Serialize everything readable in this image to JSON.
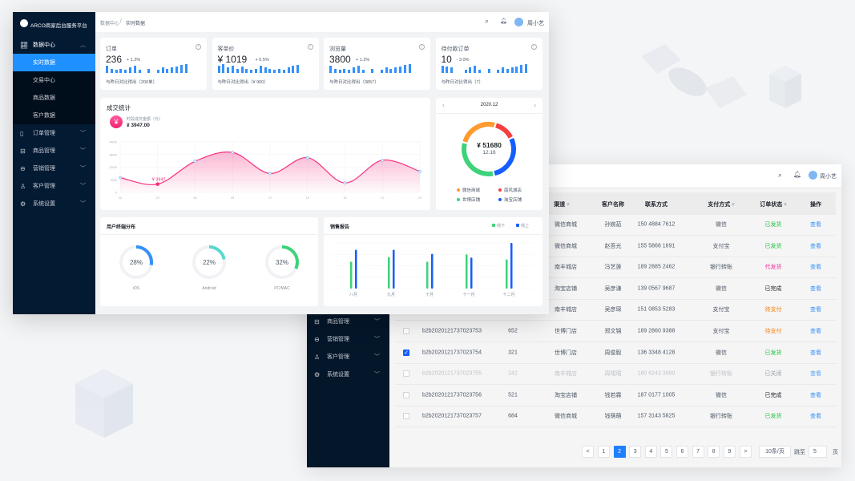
{
  "colors": {
    "accent": "#1e90ff",
    "sidebar": "#031a33",
    "pink": "#f5317f",
    "green": "#23c343",
    "orange": "#ff7d00",
    "blue": "#165dff"
  },
  "front": {
    "logo_text": "ARCO商家后台服务平台",
    "breadcrumb": [
      "数据中心",
      "/",
      "实时数据"
    ],
    "user": "周小艺",
    "sidebar": {
      "group": "数据中心",
      "sub_items": [
        "实时数据",
        "交易中心",
        "商品数据",
        "客户数据"
      ],
      "active": "实时数据",
      "items": [
        {
          "label": "订单管理",
          "icon": "document-icon"
        },
        {
          "label": "商品管理",
          "icon": "box-icon"
        },
        {
          "label": "营销管理",
          "icon": "marketing-icon"
        },
        {
          "label": "客户管理",
          "icon": "user-icon"
        },
        {
          "label": "系统设置",
          "icon": "settings-icon"
        }
      ]
    },
    "stats": [
      {
        "title": "订单",
        "value": "236",
        "change": "+ 1.2%",
        "footer": "与昨日对比得出（200单）",
        "bars": [
          8,
          5,
          4,
          5,
          4,
          6,
          8,
          4,
          0,
          5,
          0,
          4,
          6,
          5,
          6,
          7,
          9,
          10
        ]
      },
      {
        "title": "客单价",
        "value": "¥ 1019",
        "change": "+ 0.5%",
        "footer": "与昨日对比得出（¥ 900）",
        "bars": [
          8,
          10,
          6,
          8,
          5,
          7,
          5,
          4,
          5,
          8,
          6,
          5,
          4,
          5,
          4,
          6,
          8,
          9
        ]
      },
      {
        "title": "浏览量",
        "value": "3800",
        "change": "+ 1.2%",
        "footer": "与昨日对比得出（3857）",
        "bars": [
          8,
          5,
          4,
          5,
          4,
          6,
          8,
          4,
          0,
          5,
          0,
          4,
          6,
          5,
          6,
          7,
          9,
          10
        ]
      },
      {
        "title": "待付款订单",
        "value": "10",
        "change": "- 3.0%",
        "footer": "与昨日对比得出（7）",
        "bars": [
          8,
          7,
          6,
          0,
          0,
          4,
          6,
          8,
          4,
          0,
          5,
          0,
          4,
          6,
          5,
          6,
          7,
          9,
          10
        ]
      }
    ],
    "deal": {
      "title": "成交统计",
      "metric_label": "时段成交金额（元）",
      "metric_value": "¥ 3947.00",
      "highlight_label": "¥ 3947"
    },
    "donut": {
      "month": "2020.12",
      "total": "¥ 51680",
      "date": "12.16"
    },
    "terminal": {
      "title": "用户终端分布",
      "items": [
        {
          "label": "iOS",
          "percent": 28,
          "text": "28%",
          "color": "#3491fa"
        },
        {
          "label": "Android",
          "percent": 22,
          "text": "22%",
          "color": "#5ad8d0"
        },
        {
          "label": "PC/MAC",
          "percent": 32,
          "text": "32%",
          "color": "#3dd37a"
        }
      ]
    },
    "sales": {
      "title": "销售报告"
    }
  },
  "chart_data": [
    {
      "type": "area",
      "title": "成交统计",
      "x": [
        "00",
        "03",
        "06",
        "09",
        "12",
        "15",
        "18",
        "21",
        "24"
      ],
      "values": [
        7000,
        3947,
        14800,
        19000,
        9000,
        16500,
        4500,
        15300,
        10000
      ],
      "yticks": [
        "0",
        "6000",
        "12000",
        "18000",
        "24000"
      ],
      "ylim": [
        0,
        24000
      ],
      "grid": true,
      "color": "#f5317f"
    },
    {
      "type": "pie",
      "categories": [
        "微信商城",
        "南风城店",
        "淘宝店铺",
        "世博店铺"
      ],
      "values": [
        24,
        13,
        28,
        31
      ],
      "colors": [
        "#ff9a2e",
        "#f53f3f",
        "#165dff",
        "#3dd37a"
      ]
    },
    {
      "type": "bar",
      "categories": [
        "八月",
        "九月",
        "十月",
        "十一月",
        "十二月"
      ],
      "series": [
        {
          "name": "线下",
          "values": [
            59,
            69,
            59,
            75,
            64
          ],
          "color": "#3dd37a"
        },
        {
          "name": "线上",
          "values": [
            85,
            85,
            76,
            68,
            100
          ],
          "color": "#165dff"
        }
      ],
      "ylim": [
        0,
        100
      ],
      "grid": true,
      "legend": "top-right"
    }
  ],
  "back": {
    "user": "周小艺",
    "sidebar": [
      {
        "label": "商品管理",
        "icon": "box-icon"
      },
      {
        "label": "营销管理",
        "icon": "marketing-icon"
      },
      {
        "label": "客户管理",
        "icon": "user-icon"
      },
      {
        "label": "系统设置",
        "icon": "settings-icon"
      }
    ],
    "columns": [
      "渠道",
      "客户名称",
      "联系方式",
      "支付方式",
      "订单状态",
      "操作"
    ],
    "rows": [
      {
        "id": "",
        "count": "",
        "channel": "微信商城",
        "name": "孙婉茹",
        "phone": "150 4884 7612",
        "pay": "微信",
        "status": "已发货",
        "tone": "green",
        "action": "查看"
      },
      {
        "id": "",
        "count": "",
        "channel": "微信商城",
        "name": "赵吾光",
        "phone": "155 5866 1691",
        "pay": "支付宝",
        "status": "已发货",
        "tone": "green",
        "action": "查看"
      },
      {
        "id": "",
        "count": "",
        "channel": "南丰城店",
        "name": "冯艺莲",
        "phone": "189 2885 2462",
        "pay": "银行转账",
        "status": "代发货",
        "tone": "pink",
        "action": "查看"
      },
      {
        "id": "",
        "count": "",
        "channel": "淘宝店铺",
        "name": "吴彦谦",
        "phone": "139 0567 9687",
        "pay": "微信",
        "status": "已完成",
        "tone": "dark",
        "action": "查看"
      },
      {
        "id": "",
        "count": "",
        "channel": "南丰城店",
        "name": "吴彦琛",
        "phone": "151 0853 5283",
        "pay": "支付宝",
        "status": "待支付",
        "tone": "orange",
        "action": "查看"
      },
      {
        "id": "b2b2020121737023753",
        "count": "652",
        "channel": "世博门店",
        "name": "郑文锦",
        "phone": "189 2860 9388",
        "pay": "支付宝",
        "status": "待支付",
        "tone": "orange",
        "action": "查看",
        "checked": false
      },
      {
        "id": "b2b2020121737023754",
        "count": "321",
        "channel": "世博门店",
        "name": "周俊毅",
        "phone": "136 3348 4128",
        "pay": "微信",
        "status": "已发货",
        "tone": "green",
        "action": "查看",
        "checked": true
      },
      {
        "id": "b2b2020121737023755",
        "count": "242",
        "channel": "南丰城店",
        "name": "周珺珺",
        "phone": "180 6243 3980",
        "pay": "银行转账",
        "status": "已关闭",
        "tone": "gray",
        "action": "查看",
        "checked": false,
        "disabled": true
      },
      {
        "id": "b2b2020121737023756",
        "count": "521",
        "channel": "淘宝店铺",
        "name": "钱若霖",
        "phone": "187 0177 1005",
        "pay": "微信",
        "status": "已完成",
        "tone": "dark",
        "action": "查看",
        "checked": false
      },
      {
        "id": "b2b2020121737023757",
        "count": "684",
        "channel": "微信商城",
        "name": "钱萌萌",
        "phone": "157 3143 5825",
        "pay": "银行转账",
        "status": "已发货",
        "tone": "green",
        "action": "查看",
        "checked": false
      }
    ],
    "pagination": {
      "prev": "<",
      "pages": [
        "1",
        "2",
        "3",
        "4",
        "5",
        "6",
        "7",
        "8",
        "9"
      ],
      "current": "2",
      "next": ">",
      "page_size": "10条/页",
      "jump_label": "跳至",
      "jump_value": "5",
      "page_suffix": "页"
    }
  }
}
